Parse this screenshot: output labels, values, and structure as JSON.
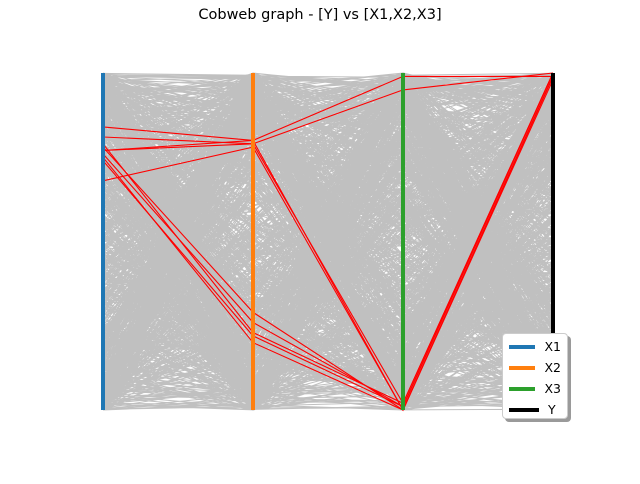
{
  "chart_data": {
    "type": "parallel-coordinates",
    "title": "Cobweb graph - [Y] vs [X1,X2,X3]",
    "axes": [
      {
        "name": "X1",
        "color": "#1f77b4"
      },
      {
        "name": "X2",
        "color": "#ff7f0e"
      },
      {
        "name": "X3",
        "color": "#2ca02c"
      },
      {
        "name": "Y",
        "color": "#000000"
      }
    ],
    "value_range": [
      0,
      1
    ],
    "background_color": "#c0c0c0",
    "highlight_color": "#ff0000",
    "background_sample_count": 1000,
    "highlighted_series": [
      {
        "values": [
          0.84,
          0.8,
          0.99,
          0.99
        ]
      },
      {
        "values": [
          0.77,
          0.79,
          0.95,
          1.0
        ]
      },
      {
        "values": [
          0.76,
          0.26,
          0.01,
          1.0
        ]
      },
      {
        "values": [
          0.75,
          0.2,
          0.0,
          0.99
        ]
      },
      {
        "values": [
          0.74,
          0.22,
          0.01,
          1.0
        ]
      },
      {
        "values": [
          0.68,
          0.78,
          0.0,
          0.99
        ]
      },
      {
        "values": [
          0.81,
          0.79,
          0.02,
          1.0
        ]
      },
      {
        "values": [
          0.78,
          0.29,
          0.0,
          0.99
        ]
      },
      {
        "values": [
          0.79,
          0.23,
          0.02,
          1.0
        ]
      },
      {
        "values": [
          0.77,
          0.8,
          0.0,
          0.98
        ]
      }
    ],
    "legend": {
      "position": "lower right",
      "entries": [
        "X1",
        "X2",
        "X3",
        "Y"
      ]
    }
  }
}
